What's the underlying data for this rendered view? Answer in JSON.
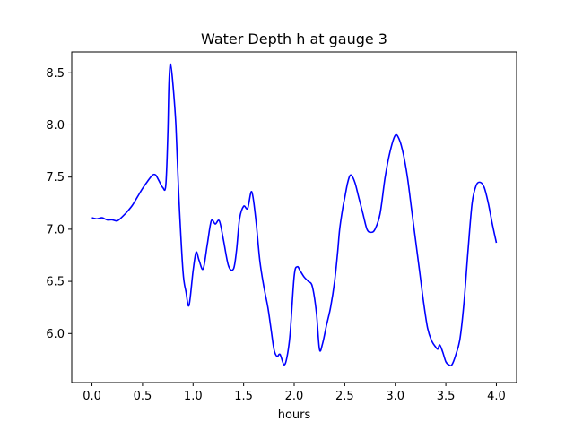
{
  "chart_data": {
    "type": "line",
    "title": "Water Depth h at gauge 3",
    "xlabel": "hours",
    "ylabel": "",
    "xlim": [
      -0.2,
      4.2
    ],
    "ylim": [
      5.53,
      8.7
    ],
    "grid": false,
    "xticks": [
      0.0,
      0.5,
      1.0,
      1.5,
      2.0,
      2.5,
      3.0,
      3.5,
      4.0
    ],
    "xtick_labels": [
      "0.0",
      "0.5",
      "1.0",
      "1.5",
      "2.0",
      "2.5",
      "3.0",
      "3.5",
      "4.0"
    ],
    "yticks": [
      6.0,
      6.5,
      7.0,
      7.5,
      8.0,
      8.5
    ],
    "ytick_labels": [
      "6.0",
      "6.5",
      "7.0",
      "7.5",
      "8.0",
      "8.5"
    ],
    "series": [
      {
        "name": "",
        "color": "#0000ff",
        "x": [
          0.0,
          0.05,
          0.1,
          0.15,
          0.2,
          0.25,
          0.3,
          0.35,
          0.4,
          0.45,
          0.5,
          0.55,
          0.6,
          0.63,
          0.66,
          0.7,
          0.73,
          0.75,
          0.76,
          0.77,
          0.78,
          0.8,
          0.83,
          0.86,
          0.9,
          0.93,
          0.96,
          1.0,
          1.03,
          1.06,
          1.1,
          1.14,
          1.18,
          1.22,
          1.26,
          1.3,
          1.35,
          1.4,
          1.43,
          1.46,
          1.5,
          1.54,
          1.58,
          1.62,
          1.66,
          1.7,
          1.74,
          1.77,
          1.8,
          1.83,
          1.86,
          1.9,
          1.93,
          1.96,
          2.0,
          2.03,
          2.06,
          2.1,
          2.14,
          2.18,
          2.22,
          2.25,
          2.28,
          2.32,
          2.36,
          2.4,
          2.43,
          2.45,
          2.48,
          2.5,
          2.53,
          2.56,
          2.6,
          2.64,
          2.68,
          2.72,
          2.76,
          2.8,
          2.85,
          2.9,
          2.95,
          3.0,
          3.04,
          3.08,
          3.12,
          3.16,
          3.2,
          3.24,
          3.28,
          3.32,
          3.36,
          3.4,
          3.42,
          3.44,
          3.47,
          3.5,
          3.53,
          3.56,
          3.6,
          3.64,
          3.68,
          3.72,
          3.76,
          3.8,
          3.84,
          3.88,
          3.92,
          3.96,
          4.0
        ],
        "y": [
          7.11,
          7.1,
          7.11,
          7.09,
          7.09,
          7.08,
          7.12,
          7.17,
          7.23,
          7.31,
          7.39,
          7.46,
          7.52,
          7.52,
          7.47,
          7.4,
          7.42,
          7.9,
          8.35,
          8.55,
          8.57,
          8.4,
          8.0,
          7.3,
          6.6,
          6.4,
          6.27,
          6.6,
          6.78,
          6.7,
          6.62,
          6.85,
          7.08,
          7.05,
          7.08,
          6.9,
          6.65,
          6.62,
          6.8,
          7.1,
          7.22,
          7.2,
          7.36,
          7.1,
          6.7,
          6.45,
          6.25,
          6.05,
          5.85,
          5.78,
          5.8,
          5.7,
          5.78,
          6.0,
          6.55,
          6.64,
          6.6,
          6.54,
          6.5,
          6.45,
          6.2,
          5.85,
          5.9,
          6.08,
          6.25,
          6.5,
          6.78,
          7.0,
          7.2,
          7.3,
          7.45,
          7.52,
          7.45,
          7.3,
          7.15,
          7.0,
          6.97,
          7.0,
          7.15,
          7.5,
          7.75,
          7.9,
          7.86,
          7.72,
          7.5,
          7.2,
          6.9,
          6.6,
          6.3,
          6.05,
          5.93,
          5.87,
          5.85,
          5.89,
          5.82,
          5.73,
          5.7,
          5.7,
          5.8,
          5.95,
          6.3,
          6.8,
          7.25,
          7.42,
          7.45,
          7.4,
          7.25,
          7.05,
          6.87
        ]
      }
    ]
  }
}
